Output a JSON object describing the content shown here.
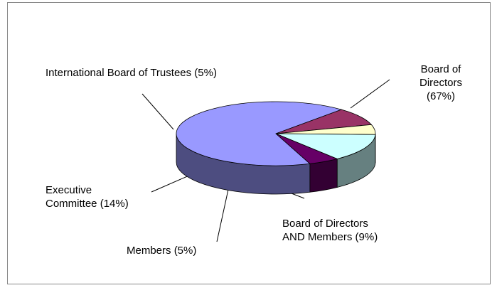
{
  "chart_data": {
    "type": "pie3d",
    "categories": [
      "Board of Directors",
      "Board of Directors AND Members",
      "Members",
      "Executive Committee",
      "International Board of Trustees"
    ],
    "values": [
      67,
      9,
      5,
      14,
      5
    ],
    "value_labels": [
      "(67%)",
      "(9%)",
      "(5%)",
      "(14%)",
      "(5%)"
    ],
    "colors": [
      "#9999ff",
      "#993366",
      "#ffffcc",
      "#ccffff",
      "#660066"
    ]
  }
}
